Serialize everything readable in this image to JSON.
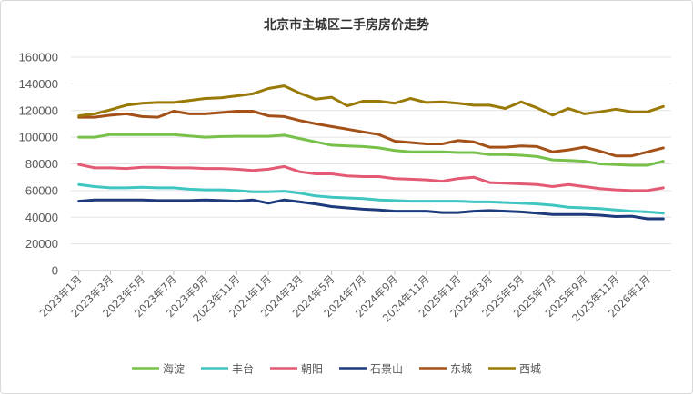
{
  "chart_data": {
    "type": "line",
    "title": "北京市主城区二手房房价走势",
    "ylim": [
      0,
      160000
    ],
    "yticks": [
      0,
      20000,
      40000,
      60000,
      80000,
      100000,
      120000,
      140000,
      160000
    ],
    "ytick_labels": [
      "0",
      "20000",
      "40000",
      "60000",
      "80000",
      "100000",
      "120000",
      "140000",
      "160000"
    ],
    "grid": true,
    "legend_position": "bottom",
    "x": [
      "2023年1月",
      "2023年2月",
      "2023年3月",
      "2023年4月",
      "2023年5月",
      "2023年6月",
      "2023年7月",
      "2023年8月",
      "2023年9月",
      "2023年10月",
      "2023年11月",
      "2023年12月",
      "2024年1月",
      "2024年2月",
      "2024年3月",
      "2024年4月",
      "2024年5月",
      "2024年6月",
      "2024年7月",
      "2024年8月",
      "2024年9月",
      "2024年10月",
      "2024年11月",
      "2024年12月",
      "2025年1月",
      "2025年2月",
      "2025年3月",
      "2025年4月",
      "2025年5月",
      "2025年6月",
      "2025年7月",
      "2025年8月",
      "2025年9月",
      "2025年10月",
      "2025年11月",
      "2025年12月",
      "2026年1月",
      "2026年2月"
    ],
    "x_tick_labels": [
      "2023年1月",
      "2023年3月",
      "2023年5月",
      "2023年7月",
      "2023年9月",
      "2023年11月",
      "2024年1月",
      "2024年3月",
      "2024年5月",
      "2024年7月",
      "2024年9月",
      "2024年11月",
      "2025年1月",
      "2025年3月",
      "2025年5月",
      "2025年7月",
      "2025年9月",
      "2025年11月",
      "2026年1月"
    ],
    "series": [
      {
        "name": "海淀",
        "color": "#77c14a",
        "values": [
          100000,
          100000,
          102000,
          102000,
          102000,
          102000,
          102000,
          101000,
          100000,
          100500,
          100700,
          100700,
          100700,
          101500,
          99000,
          96500,
          94000,
          93500,
          93000,
          92000,
          90000,
          89000,
          89000,
          89000,
          88500,
          88500,
          87000,
          87000,
          86500,
          85500,
          83000,
          82500,
          82000,
          80000,
          79500,
          79000,
          79000,
          82000
        ]
      },
      {
        "name": "丰台",
        "color": "#3fc6c0",
        "values": [
          64500,
          63000,
          62000,
          62000,
          62500,
          62000,
          62000,
          61000,
          60500,
          60500,
          60000,
          59000,
          59000,
          59500,
          58000,
          56000,
          55000,
          54500,
          54000,
          53000,
          52500,
          52000,
          52000,
          52000,
          52000,
          51500,
          51500,
          51000,
          50500,
          50000,
          49000,
          47500,
          47000,
          46500,
          45500,
          44500,
          44000,
          43000
        ]
      },
      {
        "name": "朝阳",
        "color": "#e45a74",
        "values": [
          79500,
          77000,
          77000,
          76500,
          77500,
          77500,
          77000,
          77000,
          76500,
          76500,
          76000,
          75000,
          76000,
          78000,
          74000,
          72500,
          72500,
          71000,
          70500,
          70500,
          69000,
          68500,
          68000,
          67000,
          69000,
          70000,
          66000,
          65500,
          65000,
          64500,
          63000,
          64500,
          63000,
          61500,
          60500,
          60000,
          60000,
          62000
        ]
      },
      {
        "name": "石景山",
        "color": "#1d3a7c",
        "values": [
          52000,
          53000,
          53000,
          53000,
          53000,
          52500,
          52500,
          52500,
          53000,
          52500,
          52000,
          53000,
          50500,
          53000,
          51500,
          50000,
          48000,
          47000,
          46000,
          45500,
          44500,
          44500,
          44500,
          43500,
          43500,
          44500,
          45000,
          44500,
          44000,
          43000,
          42000,
          42000,
          42000,
          41500,
          40500,
          40800,
          38800,
          38800
        ]
      },
      {
        "name": "东城",
        "color": "#a35118",
        "values": [
          115000,
          115000,
          116500,
          117500,
          115500,
          115000,
          119500,
          117500,
          117500,
          118500,
          119500,
          119500,
          116000,
          115500,
          112500,
          110000,
          108000,
          106000,
          104000,
          102000,
          97000,
          96000,
          95000,
          95000,
          97500,
          96500,
          92500,
          92500,
          93500,
          93000,
          89000,
          90500,
          92500,
          89500,
          86000,
          86000,
          89000,
          92000
        ]
      },
      {
        "name": "西城",
        "color": "#9a7a06",
        "values": [
          116000,
          117500,
          120500,
          124000,
          125500,
          126000,
          126000,
          127500,
          129000,
          129500,
          131000,
          132500,
          136500,
          138500,
          133000,
          128500,
          130000,
          123500,
          127000,
          127000,
          125500,
          129000,
          126000,
          126500,
          125500,
          124000,
          124000,
          121500,
          126500,
          122000,
          116500,
          121500,
          117500,
          119000,
          121000,
          119000,
          119000,
          123000
        ]
      }
    ]
  }
}
